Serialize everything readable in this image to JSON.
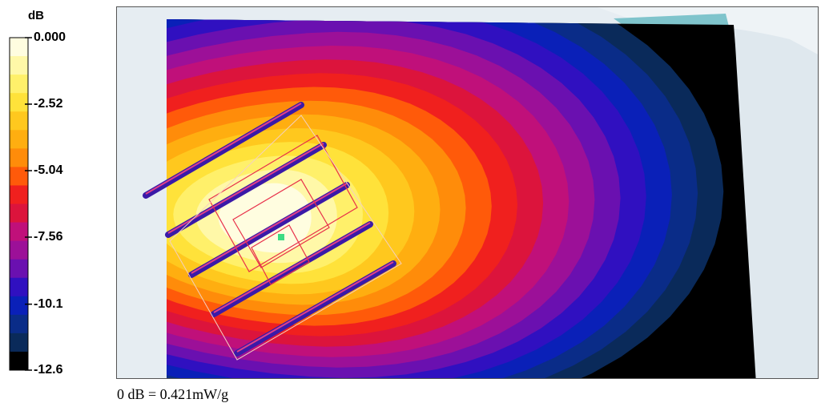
{
  "chart_data": {
    "type": "heatmap",
    "title": "",
    "colorbar": {
      "unit": "dB",
      "range": [
        -12.6,
        0.0
      ],
      "tick_labels": [
        "0.000",
        "-2.52",
        "-5.04",
        "-7.56",
        "-10.1",
        "-12.6"
      ],
      "tick_values": [
        0.0,
        -2.52,
        -5.04,
        -7.56,
        -10.1,
        -12.6
      ],
      "band_colors": [
        "#fffde0",
        "#fff8a8",
        "#fff06a",
        "#ffe23a",
        "#ffc81e",
        "#ffae10",
        "#ff8c0a",
        "#ff5a0a",
        "#f0201e",
        "#dc143c",
        "#c0107a",
        "#9c1098",
        "#6a10b0",
        "#3010c0",
        "#0a20b8",
        "#0a2c88",
        "#0a2a5a",
        "#000000"
      ]
    },
    "reference_note": "0 dB = 0.421mW/g",
    "peak_marker_color": "#3ddc84"
  }
}
